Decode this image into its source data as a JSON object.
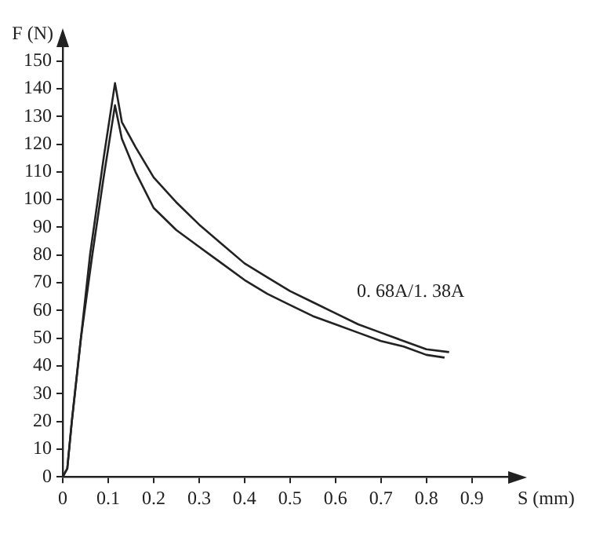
{
  "chart_data": {
    "type": "line",
    "xlabel": "S (mm)",
    "ylabel": "F (N)",
    "annotations": [
      "0. 68A/1. 38A"
    ],
    "xlim": [
      0,
      0.98
    ],
    "ylim": [
      0,
      155
    ],
    "xticks": [
      0,
      0.1,
      0.2,
      0.3,
      0.4,
      0.5,
      0.6,
      0.7,
      0.8,
      0.9
    ],
    "yticks": [
      0,
      10,
      20,
      30,
      40,
      50,
      60,
      70,
      80,
      90,
      100,
      110,
      120,
      130,
      140,
      150
    ],
    "grid": false,
    "legend": false,
    "marker": "none",
    "line_style": "solid",
    "series": [
      {
        "color": "#222222",
        "x": [
          0,
          0.01,
          0.02,
          0.04,
          0.06,
          0.09,
          0.115,
          0.13,
          0.16,
          0.2,
          0.25,
          0.3,
          0.35,
          0.4,
          0.45,
          0.5,
          0.55,
          0.6,
          0.65,
          0.7,
          0.75,
          0.8,
          0.85
        ],
        "values": [
          0,
          3,
          20,
          50,
          80,
          115,
          142,
          128,
          119,
          108,
          99,
          91,
          84,
          77,
          72,
          67,
          63,
          59,
          55,
          52,
          49,
          46,
          45
        ]
      },
      {
        "color": "#222222",
        "x": [
          0,
          0.01,
          0.02,
          0.04,
          0.065,
          0.09,
          0.115,
          0.13,
          0.16,
          0.2,
          0.25,
          0.3,
          0.35,
          0.4,
          0.45,
          0.5,
          0.55,
          0.6,
          0.65,
          0.7,
          0.75,
          0.8,
          0.84
        ],
        "values": [
          0,
          3,
          20,
          50,
          80,
          108,
          134,
          122,
          110,
          97,
          89,
          83,
          77,
          71,
          66,
          62,
          58,
          55,
          52,
          49,
          47,
          44,
          43
        ]
      }
    ]
  }
}
